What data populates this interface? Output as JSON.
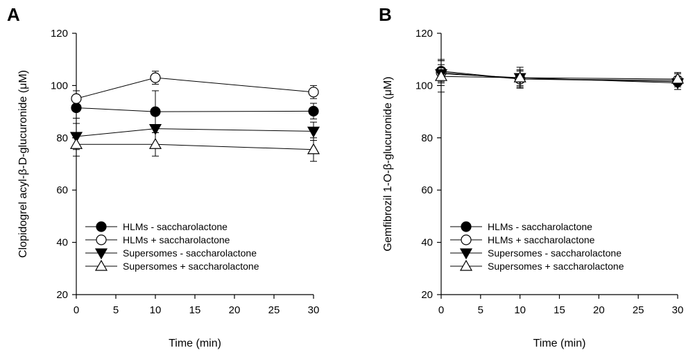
{
  "chart_data": [
    {
      "panel_label": "A",
      "type": "line",
      "xlabel": "Time (min)",
      "ylabel": "Clopidogrel acyl-β-D-glucuronide (μM)",
      "xlim": [
        0,
        30
      ],
      "ylim": [
        20,
        120
      ],
      "xticks": [
        "0",
        "5",
        "10",
        "15",
        "20",
        "25",
        "30"
      ],
      "yticks": [
        "20",
        "40",
        "60",
        "80",
        "100",
        "120"
      ],
      "grid": false,
      "legend_position": "bottom-left",
      "series": [
        {
          "name": "HLMs - saccharolactone",
          "marker": "filled-circle",
          "x": [
            0,
            10,
            30
          ],
          "y": [
            91.5,
            90.0,
            90.2
          ],
          "err": [
            4.0,
            8.0,
            3.0
          ]
        },
        {
          "name": "HLMs + saccharolactone",
          "marker": "open-circle",
          "x": [
            0,
            10,
            30
          ],
          "y": [
            95.0,
            103.0,
            97.5
          ],
          "err": [
            3.0,
            2.5,
            2.5
          ]
        },
        {
          "name": "Supersomes - saccharolactone",
          "marker": "filled-triangle-down",
          "x": [
            0,
            10,
            30
          ],
          "y": [
            80.5,
            83.5,
            82.5
          ],
          "err": [
            5.0,
            7.5,
            3.5
          ]
        },
        {
          "name": "Supersomes + saccharolactone",
          "marker": "open-triangle-up",
          "x": [
            0,
            10,
            30
          ],
          "y": [
            77.5,
            77.5,
            75.5
          ],
          "err": [
            4.5,
            4.5,
            4.5
          ]
        }
      ]
    },
    {
      "panel_label": "B",
      "type": "line",
      "xlabel": "Time (min)",
      "ylabel": "Gemfibrozil 1-O-β-glucuronide (μM)",
      "xlim": [
        0,
        30
      ],
      "ylim": [
        20,
        120
      ],
      "xticks": [
        "0",
        "5",
        "10",
        "15",
        "20",
        "25",
        "30"
      ],
      "yticks": [
        "20",
        "40",
        "60",
        "80",
        "100",
        "120"
      ],
      "grid": false,
      "legend_position": "bottom-left",
      "series": [
        {
          "name": "HLMs - saccharolactone",
          "marker": "filled-circle",
          "x": [
            0,
            10,
            30
          ],
          "y": [
            105.5,
            102.5,
            101.5
          ],
          "err": [
            4.0,
            3.0,
            3.0
          ]
        },
        {
          "name": "HLMs + saccharolactone",
          "marker": "open-circle",
          "x": [
            0,
            10,
            30
          ],
          "y": [
            105.0,
            102.5,
            102.0
          ],
          "err": [
            5.0,
            3.5,
            2.5
          ]
        },
        {
          "name": "Supersomes - saccharolactone",
          "marker": "filled-triangle-down",
          "x": [
            0,
            10,
            30
          ],
          "y": [
            104.5,
            103.0,
            101.0
          ],
          "err": [
            3.5,
            3.0,
            2.5
          ]
        },
        {
          "name": "Supersomes + saccharolactone",
          "marker": "open-triangle-up",
          "x": [
            0,
            10,
            30
          ],
          "y": [
            103.5,
            103.0,
            102.5
          ],
          "err": [
            6.0,
            4.0,
            2.5
          ]
        }
      ]
    }
  ]
}
